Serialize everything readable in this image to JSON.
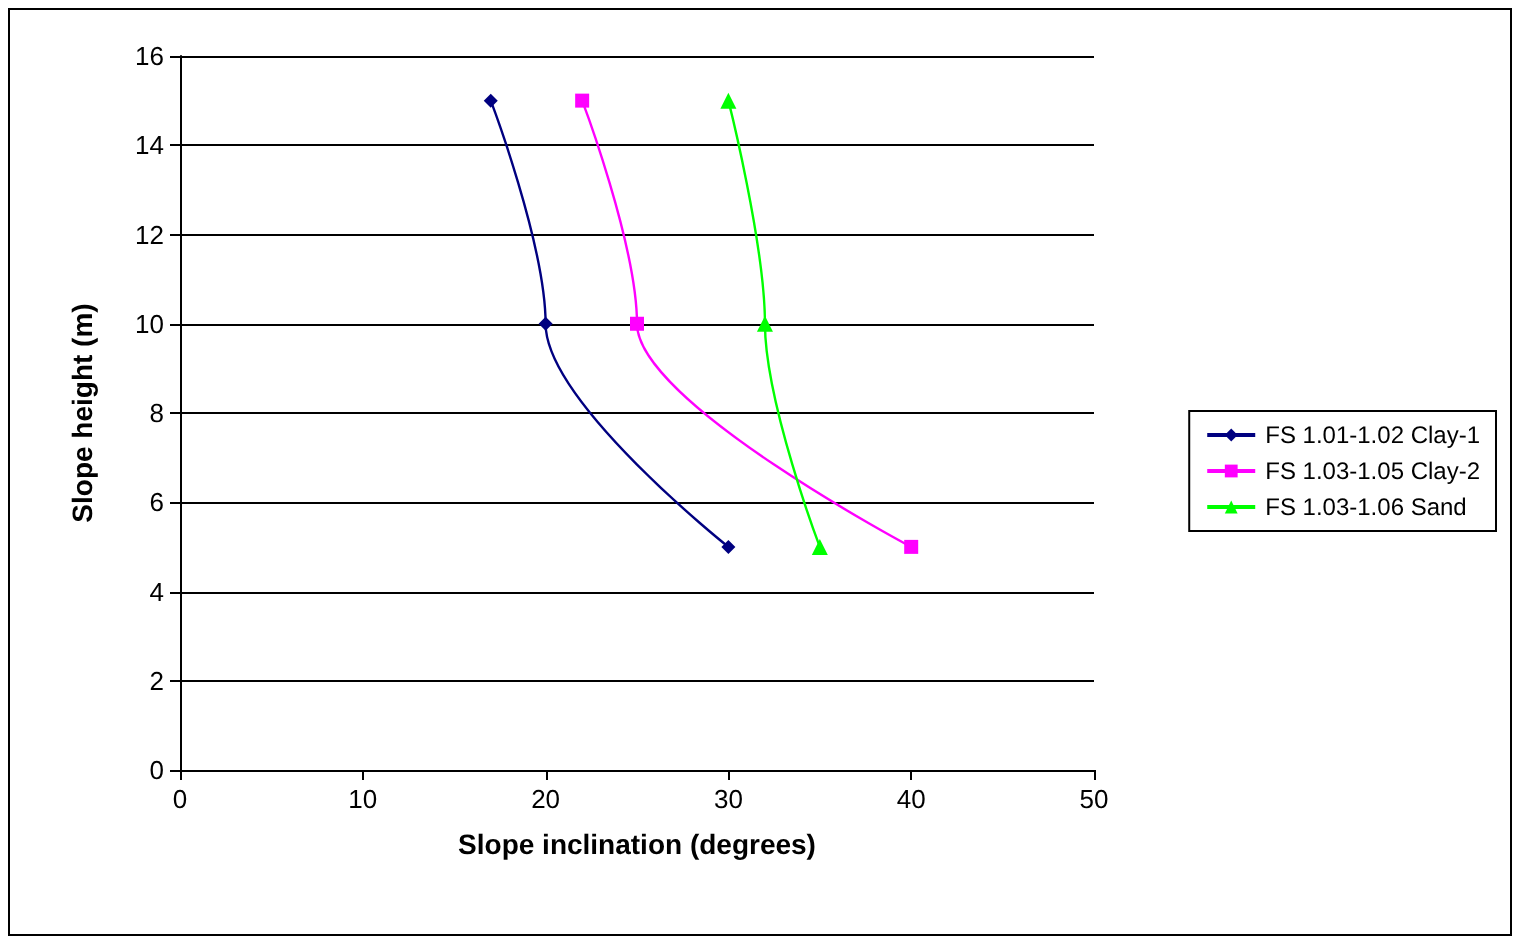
{
  "chart_data": {
    "type": "line",
    "xlabel": "Slope inclination (degrees)",
    "ylabel": "Slope height (m)",
    "xlim": [
      0,
      50
    ],
    "xticks": [
      0,
      10,
      20,
      30,
      40,
      50
    ],
    "ylim": [
      0,
      16
    ],
    "yticks": [
      0,
      2,
      4,
      6,
      8,
      10,
      12,
      14,
      16
    ],
    "grid": "y",
    "legend": "right",
    "series": [
      {
        "name": "FS 1.01-1.02 Clay-1",
        "color": "#000080",
        "marker": "diamond",
        "x": [
          30,
          20,
          17
        ],
        "values": [
          5,
          10,
          15
        ]
      },
      {
        "name": "FS 1.03-1.05 Clay-2",
        "color": "#ff00ff",
        "marker": "square",
        "x": [
          40,
          25,
          22
        ],
        "values": [
          5,
          10,
          15
        ]
      },
      {
        "name": "FS 1.03-1.06 Sand",
        "color": "#00ff00",
        "marker": "triangle",
        "x": [
          35,
          32,
          30
        ],
        "values": [
          5,
          10,
          15
        ]
      }
    ]
  }
}
